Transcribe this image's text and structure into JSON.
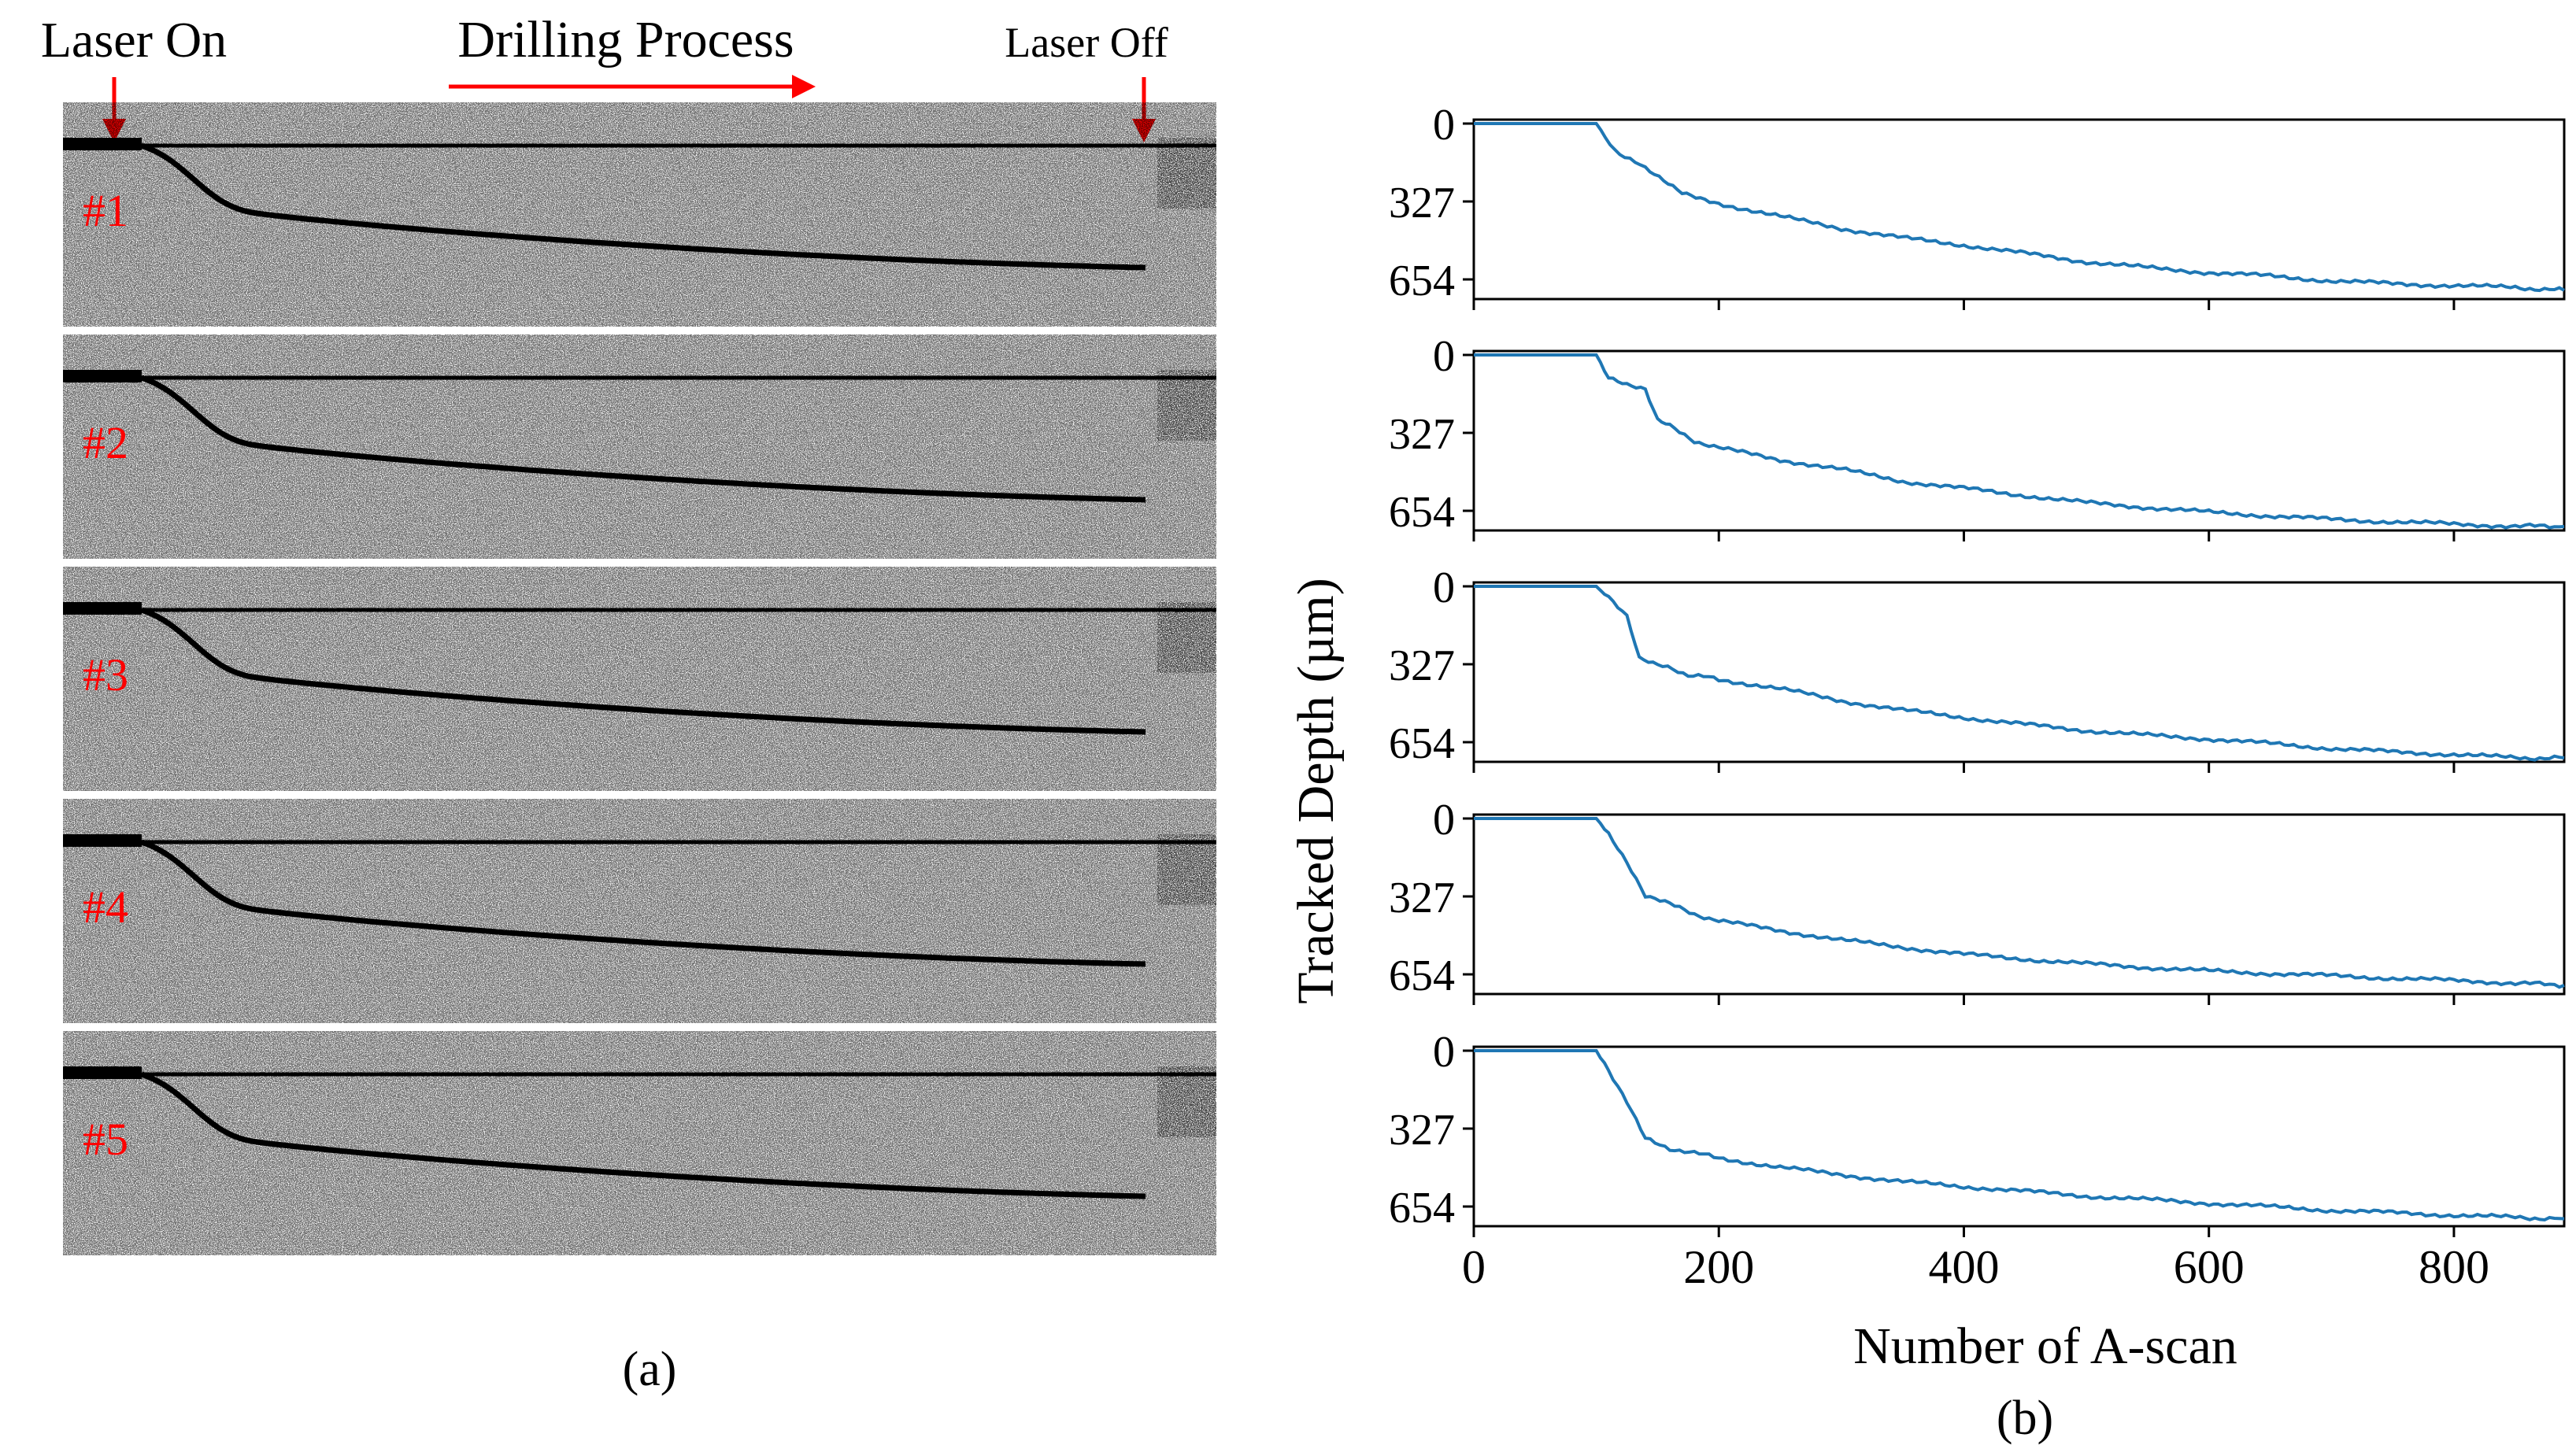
{
  "panel_a": {
    "label": "(a)",
    "annotations": {
      "laser_on": "Laser On",
      "drilling": "Drilling Process",
      "laser_off": "Laser Off"
    },
    "scans": [
      {
        "label": "#1"
      },
      {
        "label": "#2"
      },
      {
        "label": "#3"
      },
      {
        "label": "#4"
      },
      {
        "label": "#5"
      }
    ],
    "accent_color": "#ff0000"
  },
  "chart_data": {
    "type": "line",
    "panel_label": "(b)",
    "xlabel": "Number of A-scan",
    "ylabel": "Tracked Depth (µm)",
    "xlim": [
      0,
      890
    ],
    "ylim": [
      0,
      720
    ],
    "y_inverted": true,
    "xticks": [
      0,
      200,
      400,
      600,
      800
    ],
    "yticks": [
      0,
      327,
      654
    ],
    "line_color": "#1f77b4",
    "series": [
      {
        "name": "#1",
        "x": [
          0,
          80,
          100,
          115,
          140,
          170,
          200,
          250,
          300,
          350,
          400,
          450,
          500,
          550,
          600,
          650,
          700,
          750,
          800,
          850,
          890
        ],
        "y": [
          0,
          0,
          0,
          110,
          190,
          290,
          335,
          390,
          440,
          480,
          510,
          545,
          580,
          605,
          625,
          640,
          660,
          672,
          680,
          688,
          700
        ]
      },
      {
        "name": "#2",
        "x": [
          0,
          80,
          100,
          110,
          125,
          140,
          150,
          160,
          180,
          200,
          250,
          300,
          350,
          400,
          450,
          500,
          550,
          600,
          650,
          700,
          750,
          800,
          850,
          890
        ],
        "y": [
          0,
          0,
          0,
          90,
          120,
          140,
          270,
          300,
          360,
          390,
          440,
          480,
          530,
          560,
          590,
          620,
          640,
          660,
          675,
          690,
          700,
          710,
          718,
          720
        ]
      },
      {
        "name": "#3",
        "x": [
          0,
          80,
          100,
          110,
          125,
          135,
          150,
          175,
          200,
          250,
          300,
          350,
          400,
          450,
          500,
          550,
          600,
          650,
          700,
          750,
          800,
          850,
          890
        ],
        "y": [
          0,
          0,
          0,
          50,
          130,
          300,
          330,
          370,
          390,
          430,
          480,
          520,
          550,
          580,
          605,
          625,
          640,
          660,
          680,
          695,
          705,
          720,
          720
        ]
      },
      {
        "name": "#4",
        "x": [
          0,
          80,
          100,
          110,
          125,
          140,
          160,
          180,
          200,
          250,
          300,
          350,
          400,
          450,
          500,
          550,
          600,
          650,
          700,
          750,
          800,
          850,
          890
        ],
        "y": [
          0,
          0,
          0,
          60,
          180,
          320,
          360,
          400,
          430,
          470,
          510,
          540,
          570,
          590,
          610,
          625,
          640,
          650,
          660,
          670,
          680,
          690,
          700
        ]
      },
      {
        "name": "#5",
        "x": [
          0,
          80,
          100,
          110,
          125,
          140,
          160,
          180,
          200,
          250,
          300,
          350,
          400,
          450,
          500,
          550,
          600,
          650,
          700,
          750,
          800,
          850,
          890
        ],
        "y": [
          0,
          0,
          0,
          90,
          220,
          370,
          410,
          430,
          450,
          490,
          520,
          550,
          570,
          590,
          610,
          625,
          640,
          655,
          670,
          680,
          690,
          700,
          705
        ]
      }
    ]
  }
}
